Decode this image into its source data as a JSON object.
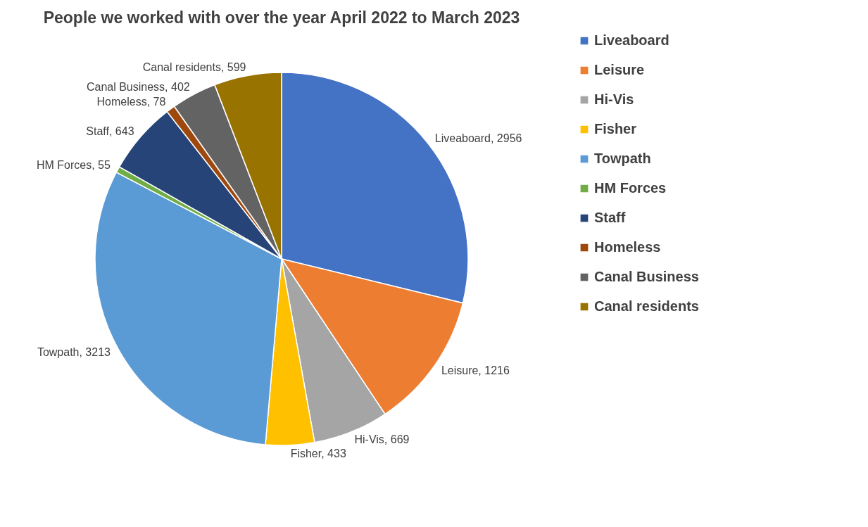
{
  "chart_data": {
    "type": "pie",
    "title": "People we worked with over the year April 2022 to March 2023",
    "categories": [
      "Liveaboard",
      "Leisure",
      "Hi-Vis",
      "Fisher",
      "Towpath",
      "HM Forces",
      "Staff",
      "Homeless",
      "Canal Business",
      "Canal residents"
    ],
    "values": [
      2956,
      1216,
      669,
      433,
      3213,
      55,
      643,
      78,
      402,
      599
    ],
    "colors": [
      "#4472c4",
      "#ed7d31",
      "#a5a5a5",
      "#ffc000",
      "#5b9bd5",
      "#70ad47",
      "#264478",
      "#9e480e",
      "#636363",
      "#997300"
    ],
    "value_labels": [
      "Liveaboard, 2956",
      "Leisure, 1216",
      "Hi-Vis, 669",
      "Fisher, 433",
      "Towpath, 3213",
      "HM Forces, 55",
      "Staff, 643",
      "Homeless, 78",
      "Canal Business, 402",
      "Canal residents, 599"
    ],
    "legend": "right"
  }
}
